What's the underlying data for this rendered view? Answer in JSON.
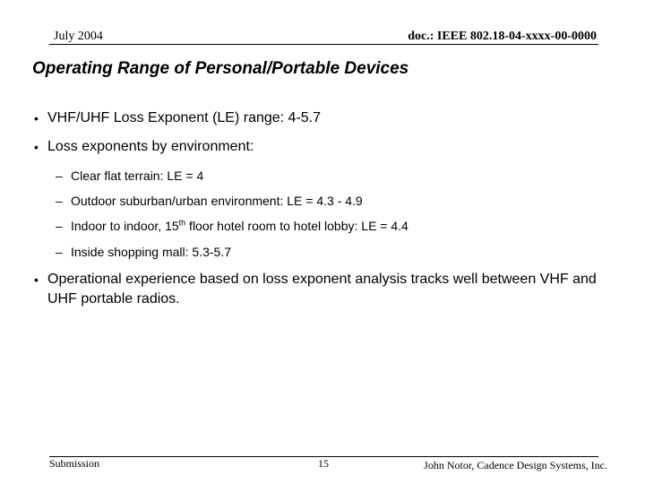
{
  "header": {
    "date": "July 2004",
    "doc_id": "doc.: IEEE 802.18-04-xxxx-00-0000"
  },
  "title": "Operating Range of Personal/Portable Devices",
  "bullets": [
    {
      "text": "VHF/UHF Loss Exponent (LE) range: 4-5.7"
    },
    {
      "text": "Loss exponents by environment:"
    },
    {
      "text": "Operational experience based on loss exponent analysis tracks well between VHF and UHF portable radios."
    }
  ],
  "bullet_glyph": "•",
  "dash_glyph": "–",
  "sub_bullets": [
    {
      "text": "Clear flat terrain: LE = 4"
    },
    {
      "text": "Outdoor suburban/urban environment: LE = 4.3 - 4.9"
    },
    {
      "text_before": "Indoor to indoor, 15",
      "superscript": "th",
      "text_after": " floor hotel room to hotel lobby: LE = 4.4"
    },
    {
      "text": "Inside shopping mall: 5.3-5.7"
    }
  ],
  "footer": {
    "left": "Submission",
    "page_number": "15",
    "author": "John Notor, Cadence Design Systems, Inc."
  }
}
